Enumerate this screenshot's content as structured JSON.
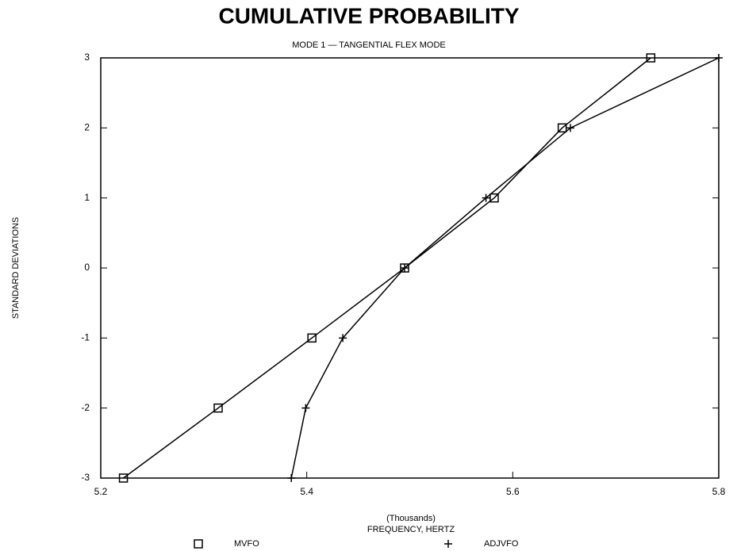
{
  "chart_data": {
    "type": "line",
    "title": "CUMULATIVE PROBABILITY",
    "subtitle": "MODE 1 — TANGENTIAL FLEX MODE",
    "x_unit_label": "(Thousands)",
    "x_label": "FREQUENCY, HERTZ",
    "y_label": "STANDARD DEVIATIONS",
    "xlim": [
      5.2,
      5.8
    ],
    "xticks": [
      {
        "value": 5.2,
        "label": "5.2"
      },
      {
        "value": 5.4,
        "label": "5.4"
      },
      {
        "value": 5.6,
        "label": "5.6"
      },
      {
        "value": 5.8,
        "label": "5.8"
      }
    ],
    "ylim": [
      -3,
      3
    ],
    "yticks": [
      -3,
      -2,
      -1,
      0,
      1,
      2,
      3
    ],
    "grid": false,
    "legend": "bottom",
    "series": [
      {
        "name": "MVFO",
        "color": "#000000",
        "marker": "square",
        "x": [
          5.222,
          5.314,
          5.405,
          5.495,
          5.582,
          5.648,
          5.734
        ],
        "values": [
          -3,
          -2,
          -1,
          0,
          1,
          2,
          3
        ]
      },
      {
        "name": "ADJVFO",
        "color": "#000000",
        "marker": "plus",
        "x": [
          5.385,
          5.399,
          5.435,
          5.495,
          5.574,
          5.656,
          5.8
        ],
        "values": [
          -3,
          -2,
          -1,
          0,
          1,
          2,
          3
        ]
      }
    ]
  }
}
